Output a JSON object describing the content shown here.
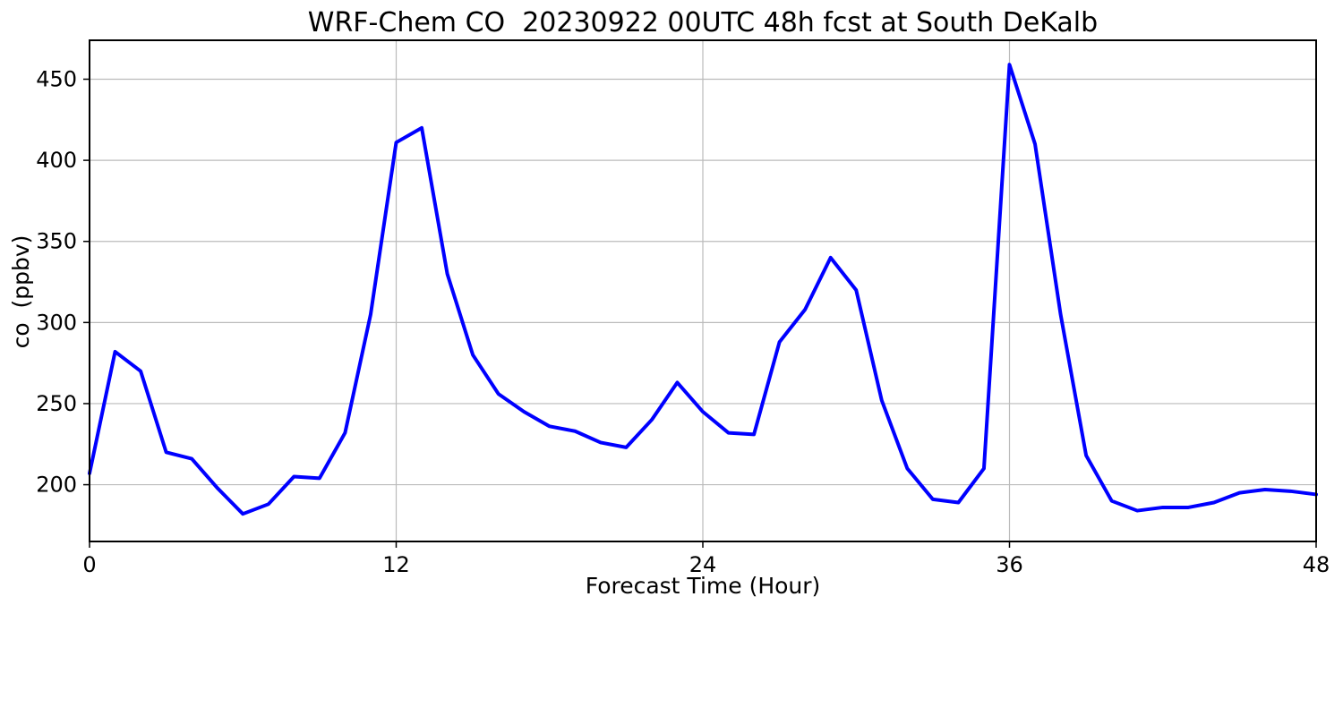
{
  "page": {
    "background": "#ffffff"
  },
  "chart_data": {
    "type": "line",
    "title": "WRF-Chem CO  20230922 00UTC 48h fcst at South DeKalb",
    "xlabel": "Forecast Time (Hour)",
    "ylabel": "co  (ppbv)",
    "x": [
      0,
      1,
      2,
      3,
      4,
      5,
      6,
      7,
      8,
      9,
      10,
      11,
      12,
      13,
      14,
      15,
      16,
      17,
      18,
      19,
      20,
      21,
      22,
      23,
      24,
      25,
      26,
      27,
      28,
      29,
      30,
      31,
      32,
      33,
      34,
      35,
      36,
      37,
      38,
      39,
      40,
      41,
      42,
      43,
      44,
      45,
      46,
      47,
      48
    ],
    "values": [
      207,
      282,
      270,
      220,
      216,
      198,
      182,
      188,
      205,
      204,
      232,
      305,
      411,
      420,
      330,
      280,
      256,
      245,
      236,
      233,
      226,
      223,
      240,
      263,
      245,
      232,
      231,
      288,
      308,
      340,
      320,
      252,
      210,
      191,
      189,
      210,
      459,
      410,
      305,
      218,
      190,
      184,
      186,
      186,
      189,
      195,
      197,
      196,
      194
    ],
    "xlim": [
      0,
      48
    ],
    "ylim": [
      165,
      474
    ],
    "xticks": [
      0,
      12,
      24,
      36,
      48
    ],
    "yticks": [
      200,
      250,
      300,
      350,
      400,
      450
    ],
    "grid": true,
    "legend": "none",
    "line_color": "#0000ff",
    "line_width": 4,
    "grid_color": "#bbbbbb",
    "axis_color": "#000000"
  }
}
